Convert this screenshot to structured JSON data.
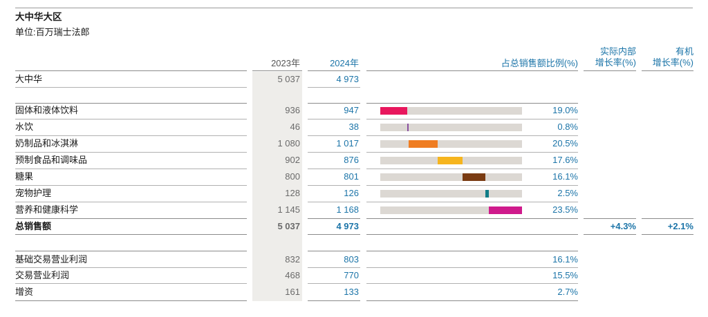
{
  "title": "大中华大区",
  "unit": "单位:百万瑞士法郎",
  "headers": {
    "y2023": "2023年",
    "y2024": "2024年",
    "share": "占总销售额比例(%)",
    "rig_line1": "实际内部",
    "rig_line2": "增长率(%)",
    "og_line1": "有机",
    "og_line2": "增长率(%)"
  },
  "region": {
    "label": "大中华",
    "v2023": "5 037",
    "v2024": "4 973"
  },
  "categories": [
    {
      "label": "固体和液体饮料",
      "v2023": "936",
      "v2024": "947",
      "share_text": "19.0%",
      "share": 19.0,
      "color": "#e8175d"
    },
    {
      "label": "水饮",
      "v2023": "46",
      "v2024": "38",
      "share_text": "0.8%",
      "share": 0.8,
      "color": "#8a4fa0"
    },
    {
      "label": "奶制品和冰淇淋",
      "v2023": "1 080",
      "v2024": "1 017",
      "share_text": "20.5%",
      "share": 20.5,
      "color": "#ef7d22"
    },
    {
      "label": "预制食品和调味品",
      "v2023": "902",
      "v2024": "876",
      "share_text": "17.6%",
      "share": 17.6,
      "color": "#f6b51e"
    },
    {
      "label": "糖果",
      "v2023": "800",
      "v2024": "801",
      "share_text": "16.1%",
      "share": 16.1,
      "color": "#7a3b12"
    },
    {
      "label": "宠物护理",
      "v2023": "128",
      "v2024": "126",
      "share_text": "2.5%",
      "share": 2.5,
      "color": "#0f7c86"
    },
    {
      "label": "营养和健康科学",
      "v2023": "1 145",
      "v2024": "1 168",
      "share_text": "23.5%",
      "share": 23.5,
      "color": "#cf1a8c"
    }
  ],
  "total": {
    "label": "总销售额",
    "v2023": "5 037",
    "v2024": "4 973",
    "rig": "+4.3%",
    "og": "+2.1%"
  },
  "profit": [
    {
      "label": "基础交易营业利润",
      "v2023": "832",
      "v2024": "803",
      "share_text": "16.1%"
    },
    {
      "label": "交易营业利润",
      "v2023": "468",
      "v2024": "770",
      "share_text": "15.5%"
    },
    {
      "label": "增资",
      "v2023": "161",
      "v2024": "133",
      "share_text": "2.7%"
    }
  ]
}
